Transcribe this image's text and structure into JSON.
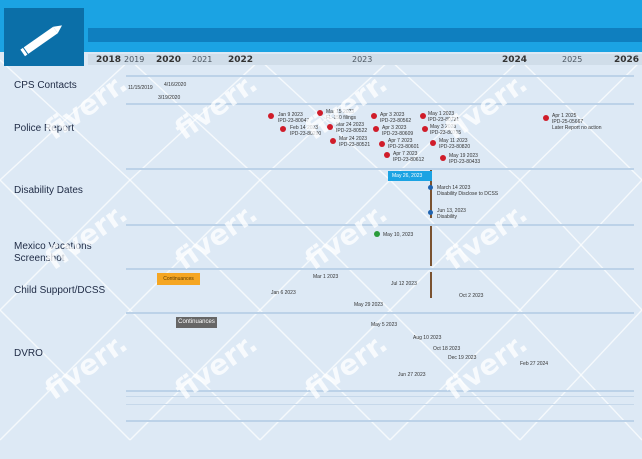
{
  "header": {
    "icon": "pencil-icon"
  },
  "years": [
    "2018",
    "2019",
    "2020",
    "2021",
    "2022",
    "2023",
    "2024",
    "2025",
    "2026"
  ],
  "lanes": {
    "cps": "CPS Contacts",
    "police": "Police Report",
    "disability": "Disability Dates",
    "mexico": "Mexico Vacations Screenshot",
    "child": "Child Support/DCSS",
    "dvro": "DVRO"
  },
  "cps_events": [
    "11/15/2019",
    "4/16/2020",
    "3/19/2020"
  ],
  "police_events": [
    {
      "date": "Jan 9 2023",
      "ref": "IPD-23-80047"
    },
    {
      "date": "Feb 14 2023",
      "ref": "IPD-23-80290"
    },
    {
      "date": "Mar 15 2023",
      "ref": "FL-150 filings"
    },
    {
      "date": "Mar 24 2023",
      "ref": "IPD-23-80522"
    },
    {
      "date": "Mar 24 2023",
      "ref": "IPD-23-80521"
    },
    {
      "date": "Apr 3 2023",
      "ref": "IPD-23-80562"
    },
    {
      "date": "Apr 3 2023",
      "ref": "IPD-23-80609"
    },
    {
      "date": "Apr 7 2023",
      "ref": "IPD-23-80601"
    },
    {
      "date": "Apr 7 2023",
      "ref": "IPD-23-80612"
    },
    {
      "date": "May 1 2023",
      "ref": "IPD-23-80721"
    },
    {
      "date": "May 3 2023",
      "ref": "IPD-23-80755"
    },
    {
      "date": "May 11 2023",
      "ref": "IPD-23-80820"
    },
    {
      "date": "May 19 2023",
      "ref": "IPD-23-80433"
    },
    {
      "date": "Apr 1 2025",
      "ref": "IPD-25-05667"
    }
  ],
  "police_note": "Later Report no action",
  "disability_events": [
    {
      "date": "May 26, 2023",
      "label": ""
    },
    {
      "date": "March 14 2023",
      "label": "Disability Disclose to DCSS"
    },
    {
      "date": "Jun 13, 2023",
      "label": "Disability"
    }
  ],
  "mexico_event": "May 10, 2023",
  "child_events": [
    "Mar 1 2023",
    "Jul 12 2023",
    "Jan 6 2023",
    "Oct 2 2023",
    "May 29 2023"
  ],
  "dvro_events": [
    "May 5 2023",
    "Aug 10 2023",
    "Oct 18 2023",
    "Dec 19 2023",
    "Feb 27 2024",
    "Jun 27 2023"
  ],
  "badges": {
    "orange": "Continuances",
    "gray": "Continuances"
  },
  "watermark": "fiverr.",
  "colors": {
    "header": "#1ba3e3",
    "accent": "#0f7fbf",
    "red": "#d01c2a",
    "blue": "#1e63b0",
    "green": "#2a9c3a",
    "bg": "#dde9f5"
  }
}
